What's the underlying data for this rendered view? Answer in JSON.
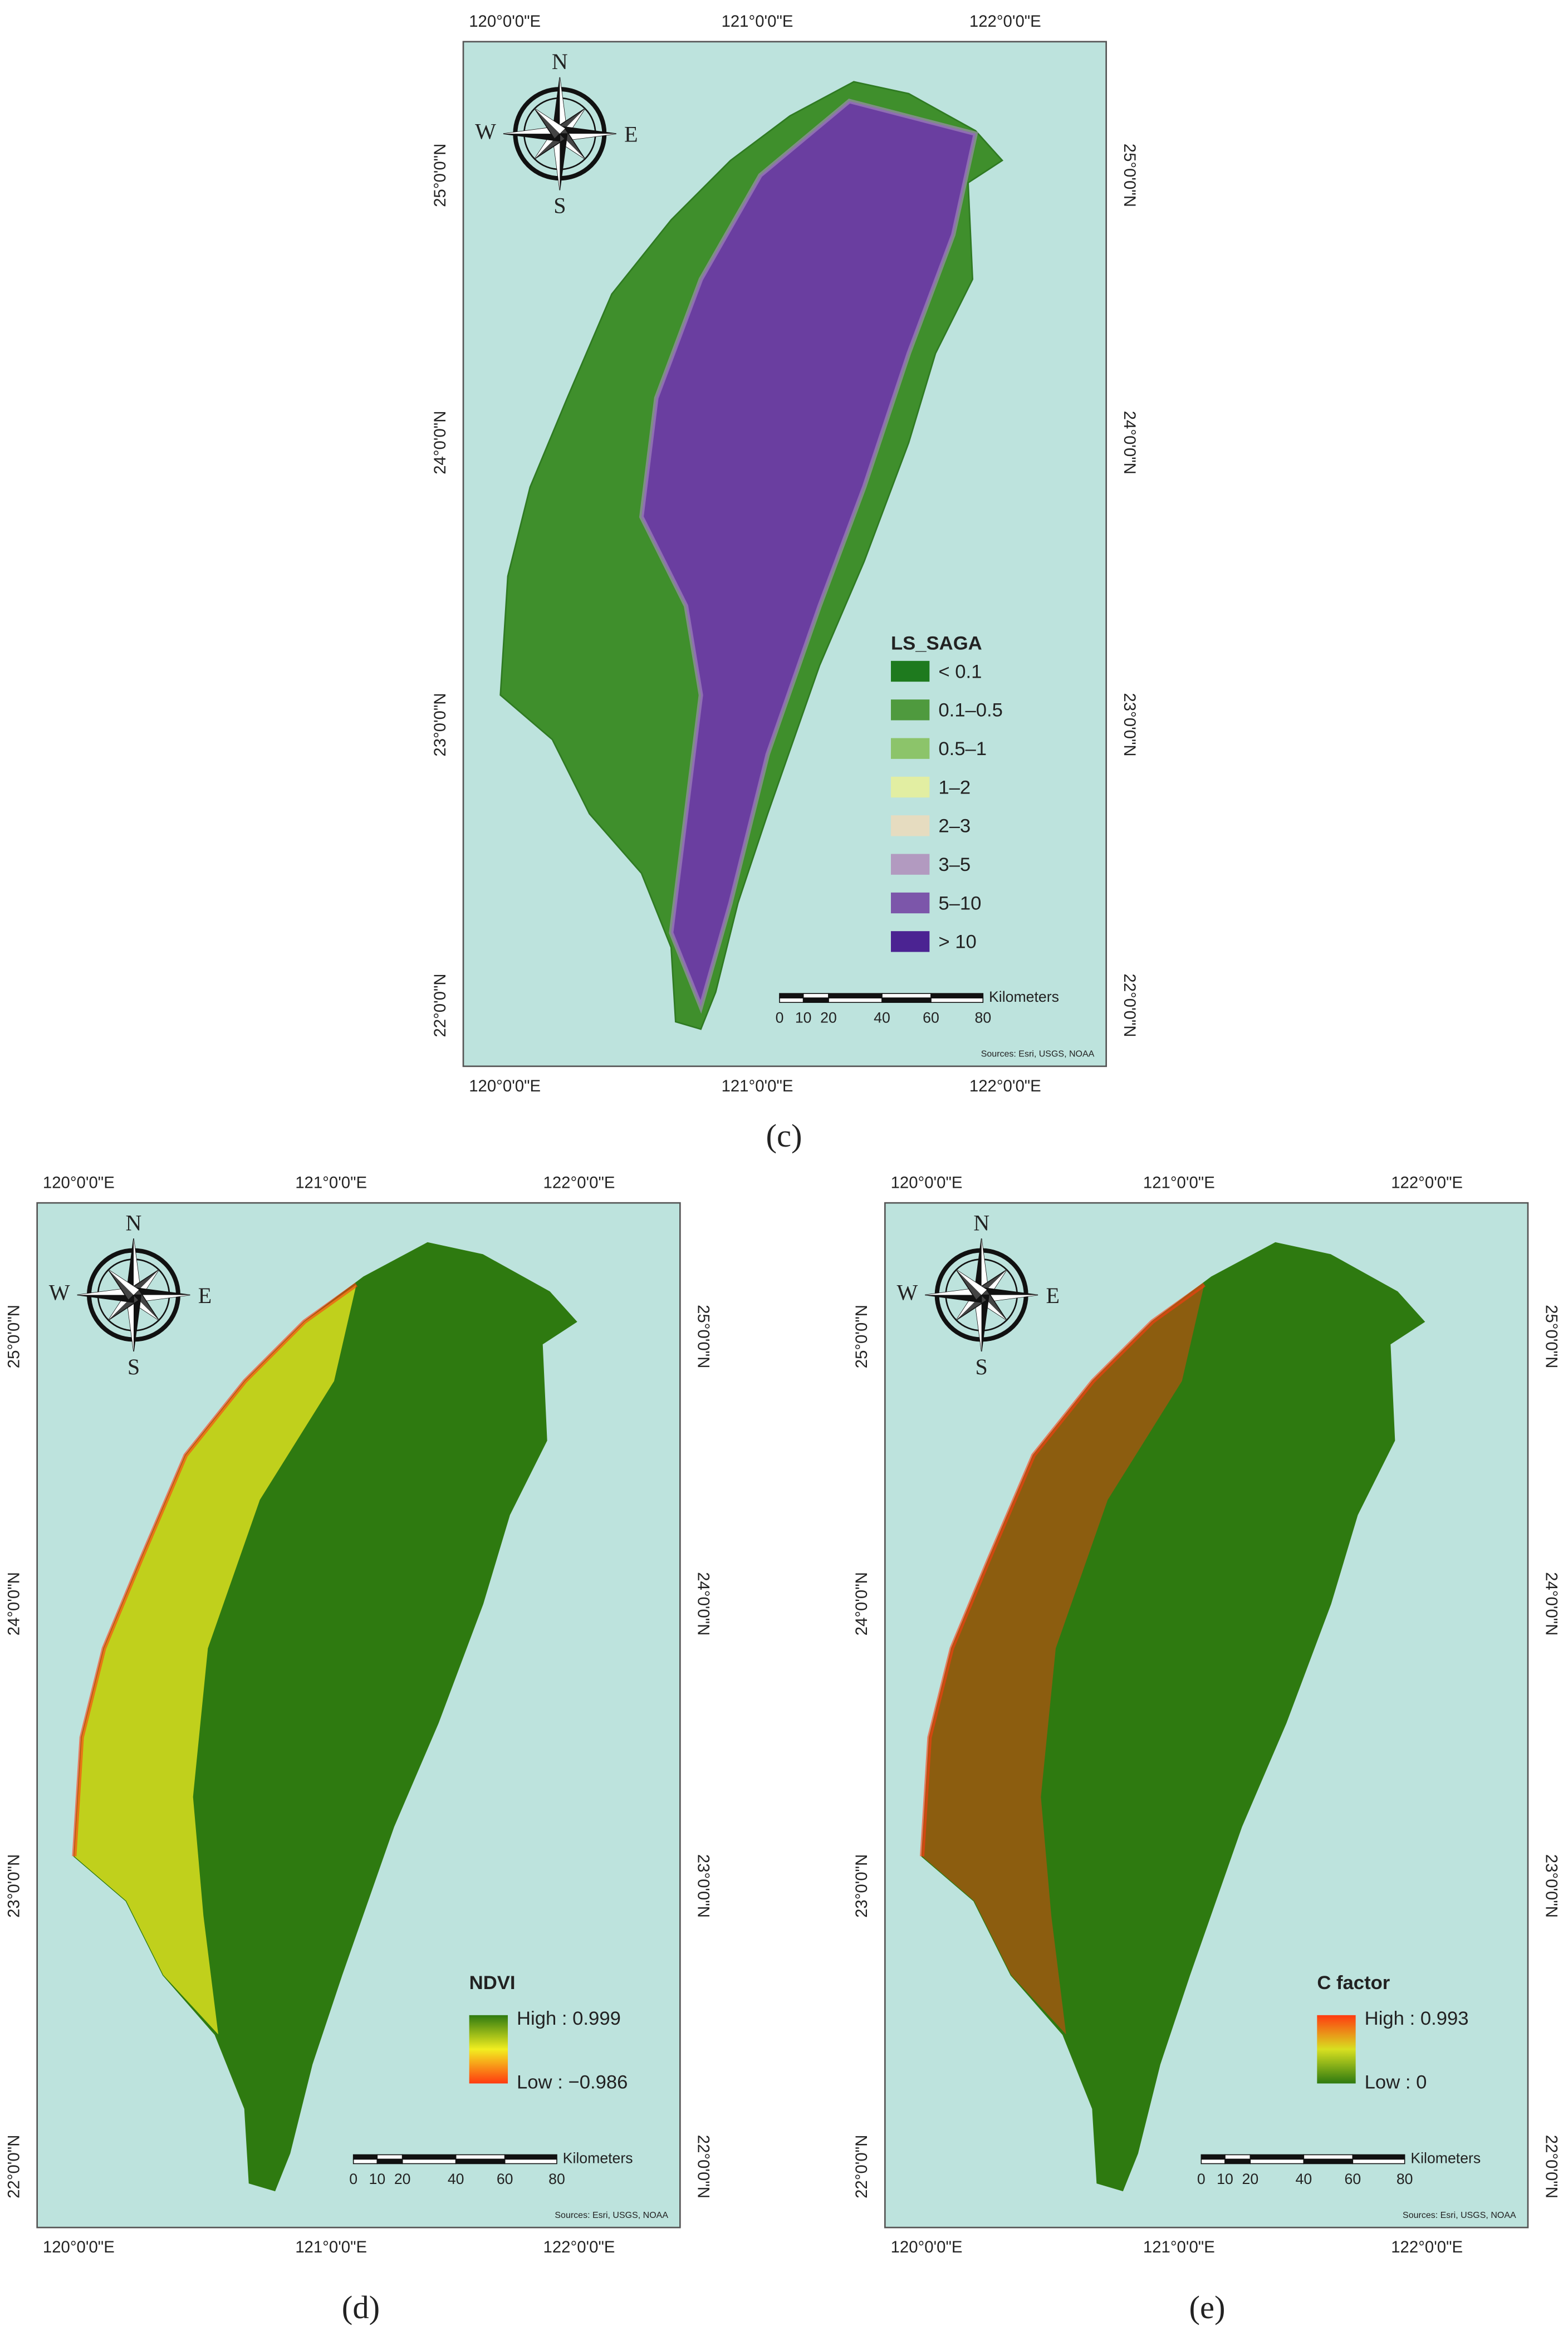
{
  "panels": [
    {
      "label": "(c)",
      "lon_labels": [
        "120°0'0\"E",
        "121°0'0\"E",
        "122°0'0\"E"
      ],
      "lat_labels": [
        "25°0'0\"N",
        "24°0'0\"N",
        "23°0'0\"N",
        "22°0'0\"N"
      ],
      "compass": {
        "n": "N",
        "s": "S",
        "e": "E",
        "w": "W"
      },
      "legend": {
        "title": "LS_SAGA",
        "items": [
          {
            "label": "< 0.1",
            "color": "#1e7a1e"
          },
          {
            "label": "0.1–0.5",
            "color": "#4f9a3e"
          },
          {
            "label": "0.5–1",
            "color": "#8cc46a"
          },
          {
            "label": "1–2",
            "color": "#e2eea2"
          },
          {
            "label": "2–3",
            "color": "#e6dcc0"
          },
          {
            "label": "3–5",
            "color": "#b29ac0"
          },
          {
            "label": "5–10",
            "color": "#7c56aa"
          },
          {
            "label": "> 10",
            "color": "#4b2392"
          }
        ]
      },
      "scale_bar": {
        "unit": "Kilometers",
        "ticks": [
          "0",
          "10",
          "20",
          "40",
          "60",
          "80"
        ]
      },
      "sources": "Sources: Esri, USGS, NOAA"
    },
    {
      "label": "(d)",
      "lon_labels": [
        "120°0'0\"E",
        "121°0'0\"E",
        "122°0'0\"E"
      ],
      "lat_labels": [
        "25°0'0\"N",
        "24°0'0\"N",
        "23°0'0\"N",
        "22°0'0\"N"
      ],
      "compass": {
        "n": "N",
        "s": "S",
        "e": "E",
        "w": "W"
      },
      "legend": {
        "title": "NDVI",
        "high": "High : 0.999",
        "low": "Low : −0.986",
        "colors": [
          "#2e7a10",
          "#f2ee20",
          "#ff3a10"
        ]
      },
      "scale_bar": {
        "unit": "Kilometers",
        "ticks": [
          "0",
          "10",
          "20",
          "40",
          "60",
          "80"
        ]
      },
      "sources": "Sources: Esri, USGS, NOAA"
    },
    {
      "label": "(e)",
      "lon_labels": [
        "120°0'0\"E",
        "121°0'0\"E",
        "122°0'0\"E"
      ],
      "lat_labels": [
        "25°0'0\"N",
        "24°0'0\"N",
        "23°0'0\"N",
        "22°0'0\"N"
      ],
      "compass": {
        "n": "N",
        "s": "S",
        "e": "E",
        "w": "W"
      },
      "legend": {
        "title": "C factor",
        "high": "High : 0.993",
        "low": "Low : 0",
        "colors": [
          "#ff3a10",
          "#d8e020",
          "#2e7a10"
        ]
      },
      "scale_bar": {
        "unit": "Kilometers",
        "ticks": [
          "0",
          "10",
          "20",
          "40",
          "60",
          "80"
        ]
      },
      "sources": "Sources: Esri, USGS, NOAA"
    }
  ]
}
